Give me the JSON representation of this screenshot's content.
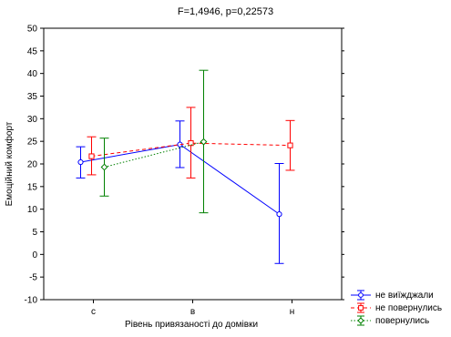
{
  "chart_data": {
    "type": "line",
    "title": "F=1,4946, p=0,22573",
    "xlabel": "Рівень привязаності до домівки",
    "ylabel": "Емоційний комфорт",
    "categories": [
      "c",
      "в",
      "н"
    ],
    "ylim": [
      -10,
      50
    ],
    "yticks": [
      -10,
      -5,
      0,
      5,
      10,
      15,
      20,
      25,
      30,
      35,
      40,
      45,
      50
    ],
    "legend_position": "bottom-right",
    "series": [
      {
        "name": "не виїжджали",
        "color": "#0000ff",
        "line_style": "solid",
        "marker": "circle",
        "values": [
          20.4,
          24.3,
          8.9
        ],
        "error_low": [
          16.9,
          19.2,
          -2.0
        ],
        "error_high": [
          23.8,
          29.5,
          20.1
        ]
      },
      {
        "name": "не повернулись",
        "color": "#ff0000",
        "line_style": "dashed",
        "marker": "square",
        "values": [
          21.7,
          24.6,
          24.1
        ],
        "error_low": [
          17.6,
          16.9,
          18.6
        ],
        "error_high": [
          26.0,
          32.5,
          29.6
        ]
      },
      {
        "name": "повернулись",
        "color": "#008000",
        "line_style": "dotted",
        "marker": "diamond",
        "values": [
          19.3,
          24.9,
          null
        ],
        "error_low": [
          12.9,
          9.2,
          null
        ],
        "error_high": [
          25.7,
          40.7,
          null
        ]
      }
    ]
  }
}
